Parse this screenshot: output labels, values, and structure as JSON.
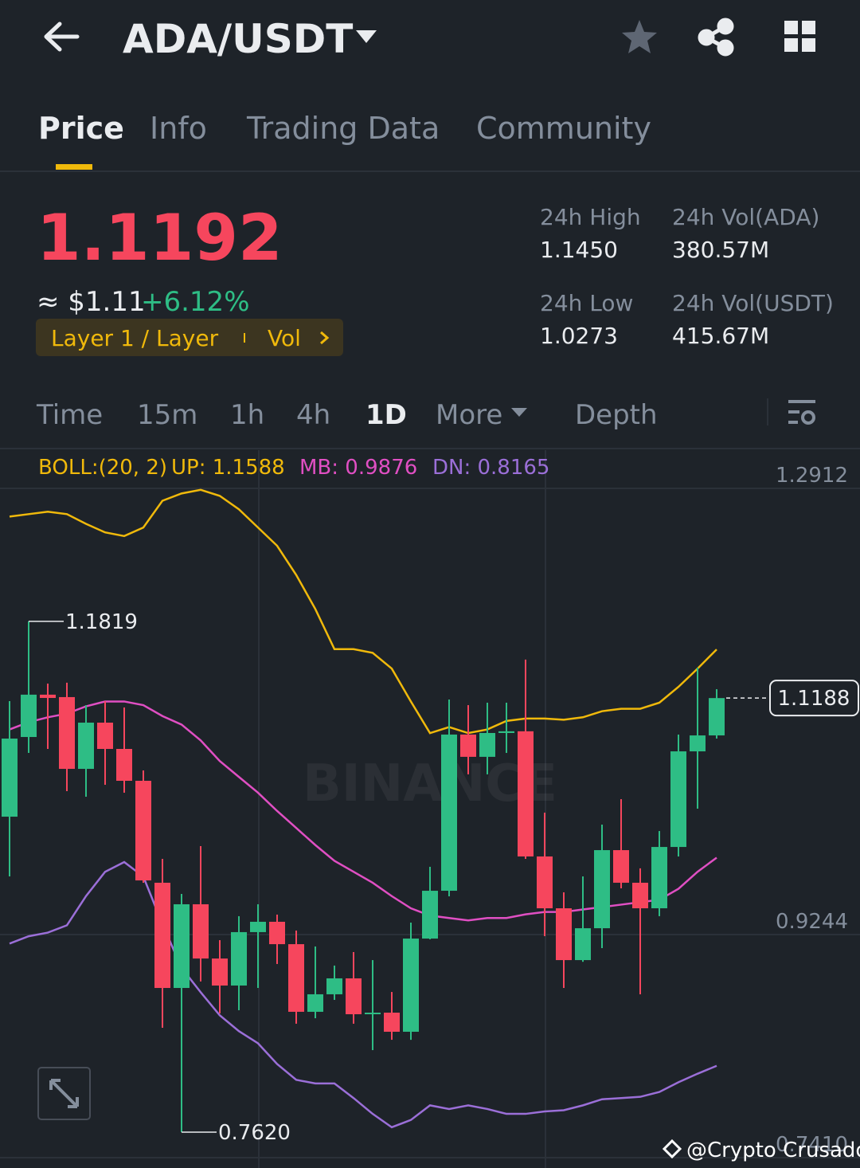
{
  "header": {
    "pair": "ADA/USDT"
  },
  "tabs": [
    "Price",
    "Info",
    "Trading Data",
    "Community"
  ],
  "ticker": {
    "price": "1.1192",
    "fiat": "≈ $1.11",
    "change": "+6.12%",
    "tag": "Layer 1 / Layer",
    "tag_more": "Vol",
    "stats": [
      {
        "label": "24h High",
        "value": "1.1450"
      },
      {
        "label": "24h Vol(ADA)",
        "value": "380.57M"
      },
      {
        "label": "24h Low",
        "value": "1.0273"
      },
      {
        "label": "24h Vol(USDT)",
        "value": "415.67M"
      }
    ]
  },
  "timeframes": [
    "Time",
    "15m",
    "1h",
    "4h",
    "1D",
    "More",
    "Depth"
  ],
  "watermark": "BINANCE",
  "credit": "@Crypto Crusador",
  "chart_data": {
    "type": "candlestick",
    "indicator": "BOLL:(20, 2)",
    "ylim": [
      0.7325,
      1.3226
    ],
    "yticks": [
      1.2912,
      0.9244,
      {
        "value": 0.741,
        "label": "0.7410"
      }
    ],
    "up_color": "#2ebd85",
    "down_color": "#f6465d",
    "candles": {
      "open": [
        1.0213,
        1.0868,
        1.1216,
        1.1196,
        1.0606,
        1.0986,
        1.077,
        1.0508,
        0.967,
        0.8805,
        0.9493,
        0.9047,
        0.8825,
        0.9264,
        0.9349,
        0.9165,
        0.8609,
        0.8753,
        0.8884,
        0.8589,
        0.8602,
        0.8445,
        0.9211,
        0.9604,
        1.0888,
        1.0705,
        1.0901,
        1.0915,
        0.9886,
        0.946,
        0.9034,
        0.9296,
        0.9938,
        0.967,
        0.946,
        0.9964,
        1.075,
        1.0881
      ],
      "high": [
        1.1163,
        1.1819,
        1.1307,
        1.1314,
        1.113,
        1.1163,
        1.1111,
        1.0593,
        0.9866,
        0.9578,
        0.9971,
        0.9198,
        0.9395,
        0.9493,
        0.9408,
        0.9277,
        0.9146,
        0.8989,
        0.91,
        0.9034,
        0.8772,
        0.9342,
        0.9801,
        1.1176,
        1.113,
        1.115,
        1.115,
        1.1504,
        1.0246,
        0.9591,
        0.9722,
        1.0148,
        1.0357,
        0.9788,
        1.0095,
        1.0888,
        1.1438,
        1.1261
      ],
      "low": [
        0.9722,
        1.0737,
        1.077,
        1.0423,
        1.0377,
        1.0475,
        1.041,
        0.967,
        0.8478,
        0.762,
        0.8858,
        0.8596,
        0.8622,
        0.8805,
        0.9002,
        0.8511,
        0.8556,
        0.8707,
        0.8511,
        0.8294,
        0.8379,
        0.8379,
        0.9205,
        0.9558,
        1.0561,
        1.0561,
        1.0737,
        0.9866,
        0.9231,
        0.8805,
        0.902,
        0.9133,
        0.9624,
        0.8753,
        0.9395,
        0.9886,
        1.0279,
        1.0855
      ],
      "close": [
        1.0855,
        1.1216,
        1.1189,
        1.0606,
        1.0986,
        1.077,
        1.0508,
        0.9689,
        0.8805,
        0.9493,
        0.9047,
        0.8825,
        0.9264,
        0.9349,
        0.9165,
        0.8609,
        0.8753,
        0.8884,
        0.8589,
        0.8602,
        0.8445,
        0.9211,
        0.9604,
        1.0888,
        1.0705,
        1.0901,
        1.0915,
        0.9886,
        0.946,
        0.9034,
        0.9296,
        0.9938,
        0.967,
        0.946,
        0.9964,
        1.075,
        1.0881,
        1.1188
      ],
      "high_labels": [
        null,
        "1.1819",
        null,
        null,
        null,
        null,
        null,
        null,
        null,
        null,
        null,
        null,
        null,
        null,
        null,
        null,
        null,
        null,
        null,
        null,
        null,
        null,
        null,
        null,
        null,
        null,
        null,
        null,
        null,
        null,
        null,
        null,
        null,
        null,
        null,
        null,
        null,
        null
      ],
      "low_labels": [
        null,
        null,
        null,
        null,
        null,
        null,
        null,
        null,
        null,
        "0.7620",
        null,
        null,
        null,
        null,
        null,
        null,
        null,
        null,
        null,
        null,
        null,
        null,
        null,
        null,
        null,
        null,
        null,
        null,
        null,
        null,
        null,
        null,
        null,
        null,
        null,
        null,
        null,
        null
      ]
    },
    "series": [
      {
        "name": "UP:",
        "color": "#f0b90b",
        "values": [
          1.268,
          1.27,
          1.272,
          1.27,
          1.262,
          1.255,
          1.252,
          1.259,
          1.281,
          1.287,
          1.29,
          1.285,
          1.274,
          1.259,
          1.244,
          1.22,
          1.192,
          1.159,
          1.159,
          1.156,
          1.143,
          1.116,
          1.09,
          1.095,
          1.09,
          1.093,
          1.1,
          1.102,
          1.102,
          1.101,
          1.103,
          1.108,
          1.11,
          1.11,
          1.115,
          1.128,
          1.143,
          1.1588
        ]
      },
      {
        "name": "MB:",
        "color": "#e04fc3",
        "values": [
          1.093,
          1.099,
          1.103,
          1.106,
          1.112,
          1.116,
          1.116,
          1.113,
          1.104,
          1.097,
          1.084,
          1.067,
          1.054,
          1.041,
          1.026,
          1.012,
          0.998,
          0.985,
          0.976,
          0.967,
          0.956,
          0.946,
          0.94,
          0.938,
          0.936,
          0.938,
          0.938,
          0.941,
          0.943,
          0.943,
          0.945,
          0.947,
          0.949,
          0.951,
          0.953,
          0.962,
          0.976,
          0.9876
        ]
      },
      {
        "name": "DN:",
        "color": "#9b6fd8",
        "values": [
          0.917,
          0.923,
          0.926,
          0.932,
          0.956,
          0.976,
          0.984,
          0.972,
          0.933,
          0.897,
          0.877,
          0.858,
          0.845,
          0.835,
          0.818,
          0.805,
          0.802,
          0.802,
          0.79,
          0.777,
          0.766,
          0.772,
          0.784,
          0.781,
          0.784,
          0.781,
          0.777,
          0.777,
          0.779,
          0.78,
          0.784,
          0.789,
          0.79,
          0.791,
          0.795,
          0.803,
          0.81,
          0.8165
        ]
      }
    ]
  }
}
